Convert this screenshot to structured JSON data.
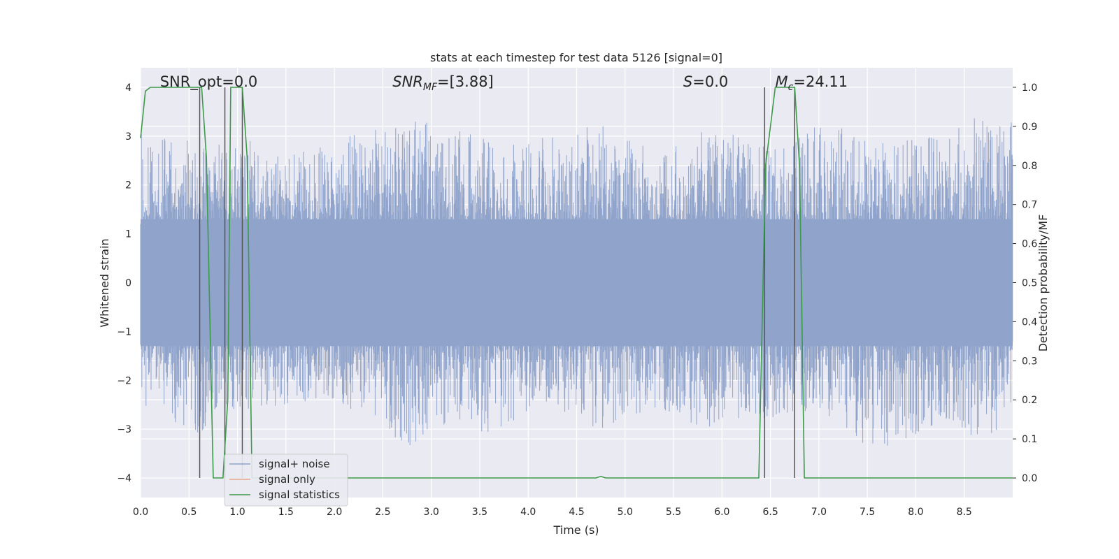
{
  "chart_data": {
    "type": "line",
    "title": "stats at each timestep for test data 5126 [signal=0]",
    "xlabel": "Time (s)",
    "ylabel_left": "Whitened strain",
    "ylabel_right": "Detection probability/MF",
    "xlim": [
      0.0,
      9.0
    ],
    "ylim_left": [
      -4.4,
      4.4
    ],
    "ylim_right": [
      -0.05,
      1.05
    ],
    "xticks": [
      "0.0",
      "0.5",
      "1.0",
      "1.5",
      "2.0",
      "2.5",
      "3.0",
      "3.5",
      "4.0",
      "4.5",
      "5.0",
      "5.5",
      "6.0",
      "6.5",
      "7.0",
      "7.5",
      "8.0",
      "8.5"
    ],
    "yticks_left": [
      "−4",
      "−3",
      "−2",
      "−1",
      "0",
      "1",
      "2",
      "3",
      "4"
    ],
    "yticks_right": [
      "0.0",
      "0.1",
      "0.2",
      "0.3",
      "0.4",
      "0.5",
      "0.6",
      "0.7",
      "0.8",
      "0.9",
      "1.0"
    ],
    "grid": true,
    "legend_placement": "lower-left",
    "annotations": [
      {
        "text": "SNR_opt=0.0",
        "x": 0.2
      },
      {
        "text": "SNR",
        "sub": "MF",
        "rest": "=[3.88]",
        "x": 2.6
      },
      {
        "text": "S",
        "rest": "=0.0",
        "x": 5.6
      },
      {
        "text": "M",
        "sub": "c",
        "rest": "=24.11",
        "x": 6.55
      }
    ],
    "series": [
      {
        "name": "signal+ noise",
        "color": "#8fa3cb",
        "envelope": {
          "x": [
            0.0,
            0.3,
            0.6,
            0.9,
            1.2,
            1.5,
            1.8,
            2.1,
            2.4,
            2.7,
            3.0,
            3.3,
            3.6,
            3.9,
            4.2,
            4.5,
            4.8,
            5.1,
            5.4,
            5.7,
            6.0,
            6.3,
            6.6,
            6.9,
            7.2,
            7.5,
            7.8,
            8.1,
            8.4,
            8.7,
            9.0
          ],
          "upper": [
            3.2,
            3.0,
            2.9,
            2.8,
            3.0,
            2.6,
            2.8,
            3.0,
            3.2,
            3.3,
            3.3,
            3.1,
            3.0,
            2.8,
            3.0,
            3.1,
            3.4,
            2.9,
            2.7,
            3.1,
            3.2,
            2.9,
            2.8,
            3.2,
            3.3,
            3.1,
            3.1,
            3.0,
            3.2,
            3.5,
            3.3
          ],
          "lower": [
            -2.5,
            -2.8,
            -3.1,
            -2.7,
            -2.6,
            -2.5,
            -2.4,
            -2.6,
            -2.7,
            -3.6,
            -3.0,
            -2.9,
            -3.1,
            -2.8,
            -2.6,
            -2.9,
            -3.0,
            -2.8,
            -2.7,
            -2.9,
            -3.1,
            -3.0,
            -2.8,
            -2.7,
            -2.8,
            -3.5,
            -3.3,
            -3.0,
            -2.9,
            -3.4,
            -2.6
          ]
        }
      },
      {
        "name": "signal only",
        "color": "#e8a88d",
        "x": [],
        "y": []
      },
      {
        "name": "signal statistics",
        "color": "#3c9a49",
        "axis": "right",
        "x": [
          0.0,
          0.05,
          0.1,
          0.2,
          0.3,
          0.4,
          0.5,
          0.6,
          0.63,
          0.68,
          0.75,
          0.8,
          0.85,
          0.9,
          0.93,
          1.0,
          1.05,
          1.1,
          1.15,
          1.2,
          1.25,
          1.3,
          2.0,
          2.95,
          3.0,
          3.05,
          4.0,
          4.7,
          4.75,
          4.8,
          4.85,
          5.5,
          6.0,
          6.38,
          6.45,
          6.55,
          6.6,
          6.75,
          6.8,
          6.85,
          6.88,
          7.0,
          8.0,
          9.0
        ],
        "y": [
          0.87,
          0.99,
          1.0,
          1.0,
          1.0,
          1.0,
          1.0,
          1.0,
          1.0,
          0.82,
          0.0,
          0.0,
          0.0,
          0.2,
          1.0,
          1.0,
          1.0,
          0.82,
          0.0,
          0.0,
          0.0,
          0.0,
          0.0,
          0.0,
          0.0,
          0.0,
          0.0,
          0.0,
          0.004,
          0.0,
          0.0,
          0.0,
          0.0,
          0.0,
          0.8,
          1.0,
          1.0,
          1.0,
          0.8,
          0.0,
          0.0,
          0.0,
          0.0,
          0.0
        ]
      }
    ],
    "vlines": {
      "color": "#555555",
      "x": [
        0.61,
        0.87,
        1.05,
        6.44,
        6.75
      ],
      "y_top": 4.0,
      "y_bottom": -4.0
    }
  }
}
